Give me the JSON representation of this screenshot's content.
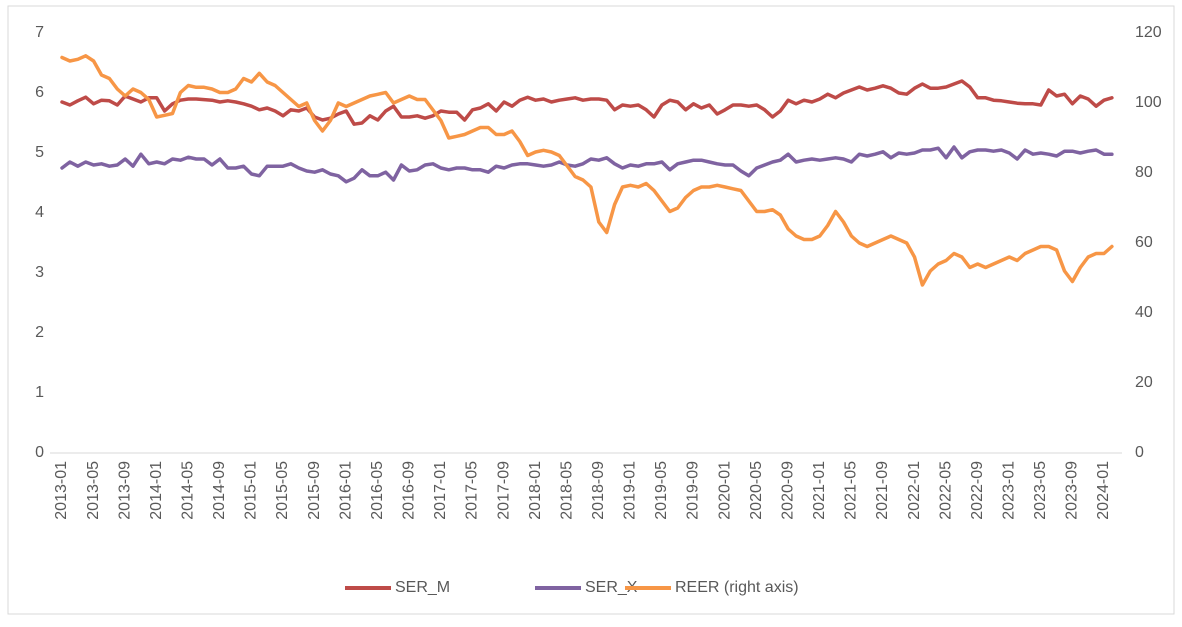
{
  "chart_data": {
    "type": "line",
    "categories": [
      "2013-01",
      null,
      null,
      null,
      "2013-05",
      null,
      null,
      null,
      "2013-09",
      null,
      null,
      null,
      "2014-01",
      null,
      null,
      null,
      "2014-05",
      null,
      null,
      null,
      "2014-09",
      null,
      null,
      null,
      "2015-01",
      null,
      null,
      null,
      "2015-05",
      null,
      null,
      null,
      "2015-09",
      null,
      null,
      null,
      "2016-01",
      null,
      null,
      null,
      "2016-05",
      null,
      null,
      null,
      "2016-09",
      null,
      null,
      null,
      "2017-01",
      null,
      null,
      null,
      "2017-05",
      null,
      null,
      null,
      "2017-09",
      null,
      null,
      null,
      "2018-01",
      null,
      null,
      null,
      "2018-05",
      null,
      null,
      null,
      "2018-09",
      null,
      null,
      null,
      "2019-01",
      null,
      null,
      null,
      "2019-05",
      null,
      null,
      null,
      "2019-09",
      null,
      null,
      null,
      "2020-01",
      null,
      null,
      null,
      "2020-05",
      null,
      null,
      null,
      "2020-09",
      null,
      null,
      null,
      "2021-01",
      null,
      null,
      null,
      "2021-05",
      null,
      null,
      null,
      "2021-09",
      null,
      null,
      null,
      "2022-01",
      null,
      null,
      null,
      "2022-05",
      null,
      null,
      null,
      "2022-09",
      null,
      null,
      null,
      "2023-01",
      null,
      null,
      null,
      "2023-05",
      null,
      null,
      null,
      "2023-09",
      null,
      null,
      null,
      "2024-01",
      null
    ],
    "series": [
      {
        "name": "SER_M",
        "color": "#be4b48",
        "values": [
          5.85,
          5.8,
          5.87,
          5.93,
          5.82,
          5.88,
          5.87,
          5.8,
          5.95,
          5.9,
          5.85,
          5.92,
          5.92,
          5.7,
          5.82,
          5.88,
          5.9,
          5.9,
          5.89,
          5.88,
          5.85,
          5.87,
          5.85,
          5.82,
          5.78,
          5.72,
          5.75,
          5.7,
          5.62,
          5.72,
          5.7,
          5.75,
          5.6,
          5.55,
          5.58,
          5.65,
          5.7,
          5.48,
          5.5,
          5.62,
          5.55,
          5.7,
          5.78,
          5.6,
          5.6,
          5.62,
          5.58,
          5.62,
          5.7,
          5.68,
          5.68,
          5.55,
          5.72,
          5.75,
          5.82,
          5.7,
          5.85,
          5.78,
          5.88,
          5.93,
          5.88,
          5.9,
          5.85,
          5.88,
          5.9,
          5.92,
          5.88,
          5.9,
          5.9,
          5.88,
          5.72,
          5.8,
          5.78,
          5.8,
          5.72,
          5.6,
          5.8,
          5.88,
          5.85,
          5.72,
          5.82,
          5.75,
          5.8,
          5.65,
          5.72,
          5.8,
          5.8,
          5.78,
          5.8,
          5.72,
          5.6,
          5.7,
          5.88,
          5.82,
          5.88,
          5.85,
          5.9,
          5.98,
          5.92,
          6.0,
          6.05,
          6.1,
          6.05,
          6.08,
          6.12,
          6.08,
          6.0,
          5.98,
          6.08,
          6.15,
          6.08,
          6.08,
          6.1,
          6.15,
          6.2,
          6.1,
          5.92,
          5.92,
          5.88,
          5.87,
          5.85,
          5.83,
          5.82,
          5.82,
          5.8,
          6.05,
          5.95,
          5.98,
          5.82,
          5.95,
          5.9,
          5.78,
          5.88,
          5.92
        ]
      },
      {
        "name": "SER_X",
        "color": "#7f63a1",
        "values": [
          4.75,
          4.85,
          4.78,
          4.85,
          4.8,
          4.82,
          4.78,
          4.8,
          4.9,
          4.78,
          4.98,
          4.82,
          4.85,
          4.82,
          4.9,
          4.88,
          4.93,
          4.9,
          4.9,
          4.8,
          4.9,
          4.75,
          4.75,
          4.78,
          4.65,
          4.62,
          4.78,
          4.78,
          4.78,
          4.82,
          4.75,
          4.7,
          4.68,
          4.72,
          4.65,
          4.62,
          4.52,
          4.58,
          4.72,
          4.62,
          4.62,
          4.68,
          4.55,
          4.8,
          4.7,
          4.72,
          4.8,
          4.82,
          4.75,
          4.72,
          4.75,
          4.75,
          4.72,
          4.72,
          4.68,
          4.78,
          4.75,
          4.8,
          4.82,
          4.82,
          4.8,
          4.78,
          4.8,
          4.85,
          4.8,
          4.78,
          4.82,
          4.9,
          4.88,
          4.92,
          4.82,
          4.75,
          4.8,
          4.78,
          4.82,
          4.82,
          4.85,
          4.72,
          4.82,
          4.85,
          4.88,
          4.88,
          4.85,
          4.82,
          4.8,
          4.8,
          4.7,
          4.62,
          4.75,
          4.8,
          4.85,
          4.88,
          4.98,
          4.85,
          4.88,
          4.9,
          4.88,
          4.9,
          4.92,
          4.9,
          4.85,
          4.98,
          4.95,
          4.98,
          5.02,
          4.92,
          5.0,
          4.98,
          5.0,
          5.05,
          5.05,
          5.08,
          4.92,
          5.1,
          4.92,
          5.02,
          5.05,
          5.05,
          5.03,
          5.05,
          5.0,
          4.9,
          5.05,
          4.98,
          5.0,
          4.98,
          4.95,
          5.03,
          5.03,
          5.0,
          5.03,
          5.05,
          4.98,
          4.98
        ]
      },
      {
        "name": "REER (right axis)",
        "color": "#f79646",
        "axis": "y2",
        "values": [
          113,
          112,
          112.5,
          113.5,
          112,
          108,
          107,
          104,
          102,
          104,
          103,
          101,
          96,
          96.5,
          97,
          103,
          105,
          104.5,
          104.5,
          104,
          103,
          103,
          104,
          107,
          106,
          108.5,
          106,
          105,
          103,
          101,
          99,
          100,
          95,
          92,
          95,
          100,
          99,
          100,
          101,
          102,
          102.5,
          103,
          100,
          101,
          102,
          101,
          101,
          98,
          95,
          90,
          90.5,
          91,
          92,
          93,
          93,
          91,
          91,
          92,
          89,
          85,
          86,
          86.5,
          86,
          85,
          82,
          79,
          78,
          76,
          66,
          63,
          71,
          76,
          76.5,
          76,
          77,
          75,
          72,
          69,
          70,
          73,
          75,
          76,
          76,
          76.5,
          76,
          75.5,
          75,
          72,
          69,
          69,
          69.5,
          68,
          64,
          62,
          61,
          61,
          62,
          65,
          69,
          66,
          62,
          60,
          59,
          60,
          61,
          62,
          61,
          60,
          56,
          48,
          52,
          54,
          55,
          57,
          56,
          53,
          54,
          53,
          54,
          55,
          56,
          55,
          57,
          58,
          59,
          59,
          58,
          52,
          49,
          53,
          56,
          57,
          57,
          59
        ]
      }
    ],
    "ylim": [
      0,
      7
    ],
    "yticks": [
      0,
      1,
      2,
      3,
      4,
      5,
      6,
      7
    ],
    "y2lim": [
      0,
      120
    ],
    "y2ticks": [
      0,
      20,
      40,
      60,
      80,
      100,
      120
    ],
    "legend": "bottom",
    "grid": false
  }
}
